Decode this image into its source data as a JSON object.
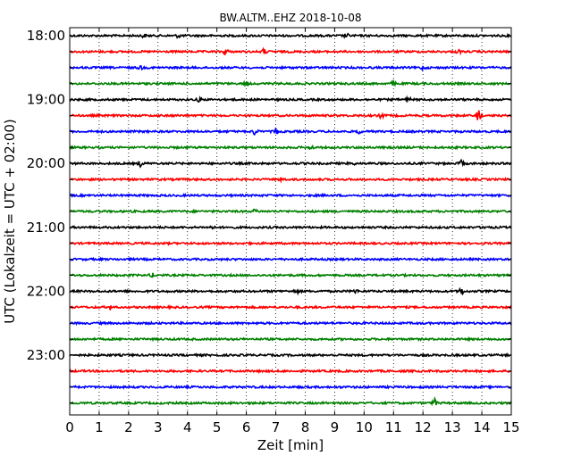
{
  "chart_data": {
    "type": "line",
    "title": "BW.ALTM..EHZ 2018-10-08",
    "xlabel": "Zeit  [min]",
    "ylabel": "UTC (Lokalzeit = UTC + 02:00)",
    "xlim": [
      0,
      15
    ],
    "x_ticks": [
      "0",
      "1",
      "2",
      "3",
      "4",
      "5",
      "6",
      "7",
      "8",
      "9",
      "10",
      "11",
      "12",
      "13",
      "14",
      "15"
    ],
    "y_tick_labels": [
      "18:00",
      "19:00",
      "20:00",
      "21:00",
      "22:00",
      "23:00"
    ],
    "grid": "vertical-dotted",
    "trace_colors": [
      "#000000",
      "#ff0000",
      "#0000ff",
      "#008000"
    ],
    "traces": [
      {
        "start": "18:00",
        "events": [
          {
            "x": 2.5,
            "amp": 2
          },
          {
            "x": 3.7,
            "amp": 2
          },
          {
            "x": 9.4,
            "amp": 2
          }
        ]
      },
      {
        "start": "18:15",
        "events": [
          {
            "x": 5.3,
            "amp": 4
          },
          {
            "x": 6.6,
            "amp": 3
          },
          {
            "x": 13.2,
            "amp": 2
          }
        ]
      },
      {
        "start": "18:30",
        "events": [
          {
            "x": 2.4,
            "amp": 2
          },
          {
            "x": 12.0,
            "amp": 2
          }
        ]
      },
      {
        "start": "18:45",
        "events": [
          {
            "x": 6.0,
            "amp": 2
          },
          {
            "x": 11.0,
            "amp": 2
          }
        ]
      },
      {
        "start": "19:00",
        "events": [
          {
            "x": 4.4,
            "amp": 2
          },
          {
            "x": 11.5,
            "amp": 2
          }
        ]
      },
      {
        "start": "19:15",
        "events": [
          {
            "x": 10.6,
            "amp": 3
          },
          {
            "x": 13.9,
            "amp": 9
          }
        ]
      },
      {
        "start": "19:30",
        "events": [
          {
            "x": 6.3,
            "amp": 4
          },
          {
            "x": 7.0,
            "amp": 3
          },
          {
            "x": 9.8,
            "amp": 2
          }
        ]
      },
      {
        "start": "19:45",
        "events": [
          {
            "x": 8.2,
            "amp": 2
          }
        ]
      },
      {
        "start": "20:00",
        "events": [
          {
            "x": 2.4,
            "amp": 3
          },
          {
            "x": 9.6,
            "amp": 2
          },
          {
            "x": 13.3,
            "amp": 3
          }
        ]
      },
      {
        "start": "20:15",
        "events": [
          {
            "x": 7.2,
            "amp": 2
          }
        ]
      },
      {
        "start": "20:30",
        "events": []
      },
      {
        "start": "20:45",
        "events": [
          {
            "x": 6.3,
            "amp": 2
          }
        ]
      },
      {
        "start": "21:00",
        "events": [
          {
            "x": 4.8,
            "amp": 2
          },
          {
            "x": 14.1,
            "amp": 2
          }
        ]
      },
      {
        "start": "21:15",
        "events": []
      },
      {
        "start": "21:30",
        "events": []
      },
      {
        "start": "21:45",
        "events": [
          {
            "x": 2.8,
            "amp": 2
          }
        ]
      },
      {
        "start": "22:00",
        "events": [
          {
            "x": 7.7,
            "amp": 2
          },
          {
            "x": 9.7,
            "amp": 2
          },
          {
            "x": 13.3,
            "amp": 4
          }
        ]
      },
      {
        "start": "22:15",
        "events": [
          {
            "x": 1.4,
            "amp": 3
          }
        ]
      },
      {
        "start": "22:30",
        "events": []
      },
      {
        "start": "22:45",
        "events": []
      },
      {
        "start": "23:00",
        "events": []
      },
      {
        "start": "23:15",
        "events": []
      },
      {
        "start": "23:30",
        "events": []
      },
      {
        "start": "23:45",
        "events": [
          {
            "x": 12.4,
            "amp": 4
          }
        ]
      }
    ]
  }
}
